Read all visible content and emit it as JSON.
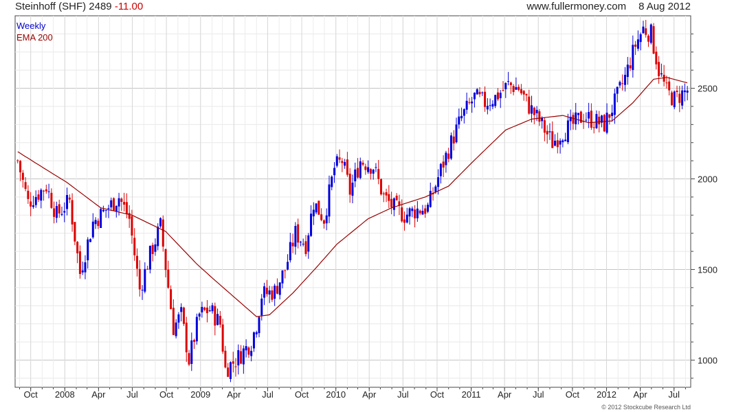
{
  "header": {
    "security": "Steinhoff (SHF)",
    "price": "2489",
    "change": "-11.00",
    "site": "www.fullermoney.com",
    "date": "8 Aug 2012"
  },
  "legend": {
    "weekly": "Weekly",
    "ema": "EMA 200"
  },
  "copyright": "© 2012 Stockcube Research Ltd",
  "colors": {
    "up": "#0000dd",
    "down": "#dd0000",
    "ema": "#990000",
    "grid": "#dddddd"
  },
  "chart_data": {
    "type": "candlestick",
    "ylim": [
      850,
      2900
    ],
    "yticks": [
      1000,
      1500,
      2000,
      2500
    ],
    "xticks": [
      "Oct",
      "2008",
      "Apr",
      "Jul",
      "Oct",
      "2009",
      "Apr",
      "Jul",
      "Oct",
      "2010",
      "Apr",
      "Jul",
      "Oct",
      "2011",
      "Apr",
      "Jul",
      "Oct",
      "2012",
      "Apr",
      "Jul"
    ],
    "xtick_dates": [
      "2007-10-01",
      "2008-01-01",
      "2008-04-01",
      "2008-07-01",
      "2008-10-01",
      "2009-01-01",
      "2009-04-01",
      "2009-07-01",
      "2009-10-01",
      "2010-01-01",
      "2010-04-01",
      "2010-07-01",
      "2010-10-01",
      "2011-01-01",
      "2011-04-01",
      "2011-07-01",
      "2011-10-01",
      "2012-01-01",
      "2012-04-01",
      "2012-07-01"
    ],
    "xlim": [
      "2007-08-20",
      "2012-08-15"
    ],
    "close_keypoints": [
      [
        "2007-08-27",
        2100
      ],
      [
        "2007-09-24",
        1870
      ],
      [
        "2007-11-12",
        1960
      ],
      [
        "2007-12-10",
        1800
      ],
      [
        "2008-01-14",
        1880
      ],
      [
        "2008-02-11",
        1480
      ],
      [
        "2008-03-17",
        1760
      ],
      [
        "2008-04-21",
        1830
      ],
      [
        "2008-05-26",
        1900
      ],
      [
        "2008-06-23",
        1780
      ],
      [
        "2008-07-21",
        1390
      ],
      [
        "2008-08-18",
        1580
      ],
      [
        "2008-09-15",
        1740
      ],
      [
        "2008-10-20",
        1180
      ],
      [
        "2008-11-10",
        1250
      ],
      [
        "2008-12-01",
        1000
      ],
      [
        "2008-12-29",
        1250
      ],
      [
        "2009-01-26",
        1280
      ],
      [
        "2009-02-23",
        1200
      ],
      [
        "2009-03-09",
        950
      ],
      [
        "2009-04-06",
        1000
      ],
      [
        "2009-04-27",
        1050
      ],
      [
        "2009-05-18",
        1100
      ],
      [
        "2009-06-01",
        1200
      ],
      [
        "2009-06-15",
        1360
      ],
      [
        "2009-07-20",
        1380
      ],
      [
        "2009-08-17",
        1500
      ],
      [
        "2009-09-14",
        1700
      ],
      [
        "2009-10-12",
        1640
      ],
      [
        "2009-11-02",
        1870
      ],
      [
        "2009-11-30",
        1780
      ],
      [
        "2009-12-28",
        2060
      ],
      [
        "2010-01-18",
        2100
      ],
      [
        "2010-02-08",
        1930
      ],
      [
        "2010-03-08",
        2100
      ],
      [
        "2010-04-12",
        2070
      ],
      [
        "2010-05-10",
        1900
      ],
      [
        "2010-06-07",
        1840
      ],
      [
        "2010-07-05",
        1800
      ],
      [
        "2010-08-09",
        1830
      ],
      [
        "2010-09-06",
        1840
      ],
      [
        "2010-10-11",
        2050
      ],
      [
        "2010-11-08",
        2200
      ],
      [
        "2010-12-06",
        2340
      ],
      [
        "2011-01-10",
        2450
      ],
      [
        "2011-02-07",
        2420
      ],
      [
        "2011-03-07",
        2450
      ],
      [
        "2011-04-11",
        2520
      ],
      [
        "2011-05-09",
        2500
      ],
      [
        "2011-06-06",
        2400
      ],
      [
        "2011-07-04",
        2320
      ],
      [
        "2011-08-08",
        2200
      ],
      [
        "2011-09-05",
        2260
      ],
      [
        "2011-10-03",
        2300
      ],
      [
        "2011-10-31",
        2350
      ],
      [
        "2011-11-28",
        2320
      ],
      [
        "2011-12-26",
        2300
      ],
      [
        "2012-01-23",
        2420
      ],
      [
        "2012-02-20",
        2560
      ],
      [
        "2012-03-19",
        2740
      ],
      [
        "2012-04-09",
        2830
      ],
      [
        "2012-04-30",
        2800
      ],
      [
        "2012-05-21",
        2600
      ],
      [
        "2012-06-11",
        2480
      ],
      [
        "2012-07-02",
        2440
      ],
      [
        "2012-07-23",
        2470
      ],
      [
        "2012-08-06",
        2489
      ]
    ],
    "ema_keypoints": [
      [
        "2007-08-27",
        2150
      ],
      [
        "2007-11-05",
        2060
      ],
      [
        "2008-01-07",
        1980
      ],
      [
        "2008-04-07",
        1840
      ],
      [
        "2008-06-30",
        1800
      ],
      [
        "2008-09-29",
        1710
      ],
      [
        "2008-12-22",
        1530
      ],
      [
        "2009-02-09",
        1440
      ],
      [
        "2009-04-06",
        1340
      ],
      [
        "2009-06-01",
        1240
      ],
      [
        "2009-07-06",
        1250
      ],
      [
        "2009-09-07",
        1370
      ],
      [
        "2009-11-09",
        1510
      ],
      [
        "2010-01-04",
        1640
      ],
      [
        "2010-03-29",
        1780
      ],
      [
        "2010-05-31",
        1840
      ],
      [
        "2010-08-30",
        1900
      ],
      [
        "2010-11-01",
        1960
      ],
      [
        "2011-01-03",
        2090
      ],
      [
        "2011-04-04",
        2270
      ],
      [
        "2011-06-13",
        2330
      ],
      [
        "2011-09-05",
        2350
      ],
      [
        "2011-11-14",
        2310
      ],
      [
        "2012-01-16",
        2320
      ],
      [
        "2012-03-12",
        2420
      ],
      [
        "2012-05-07",
        2550
      ],
      [
        "2012-06-11",
        2560
      ],
      [
        "2012-08-06",
        2530
      ]
    ]
  }
}
